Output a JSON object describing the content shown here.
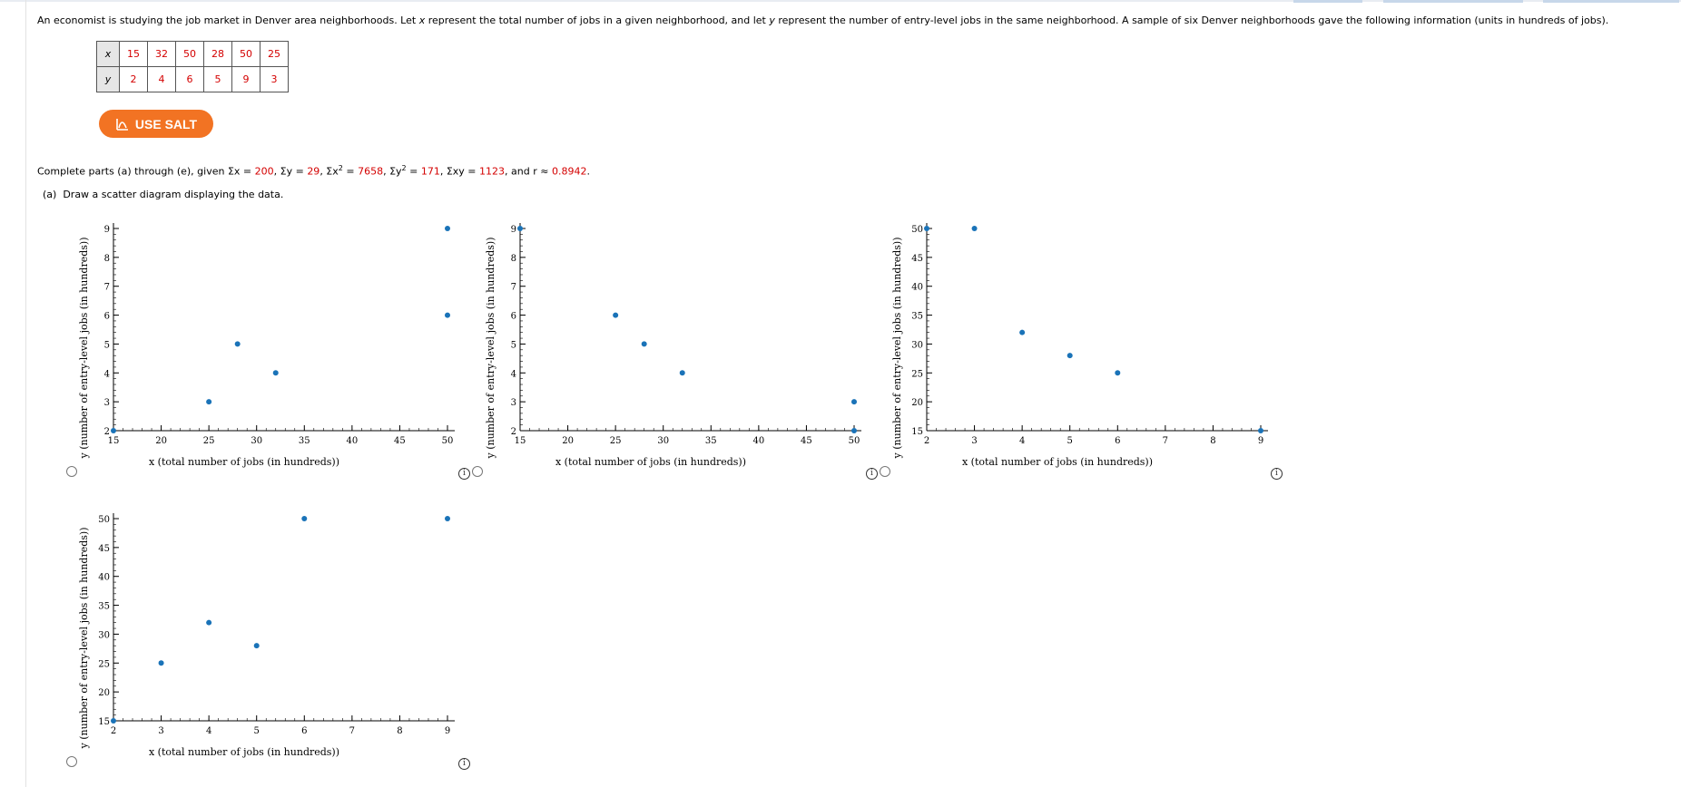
{
  "question": {
    "intro_before_x": "An economist is studying the job market in Denver area neighborhoods. Let ",
    "x_var": "x",
    "intro_mid": " represent the total number of jobs in a given neighborhood, and let ",
    "y_var": "y",
    "intro_after": " represent the number of entry-level jobs in the same neighborhood. A sample of six Denver neighborhoods gave the following information (units in hundreds of jobs)."
  },
  "table": {
    "x_label": "x",
    "y_label": "y",
    "x_values": [
      "15",
      "32",
      "50",
      "28",
      "50",
      "25"
    ],
    "y_values": [
      "2",
      "4",
      "6",
      "5",
      "9",
      "3"
    ]
  },
  "salt_button": {
    "label": "USE SALT",
    "color": "#f27323"
  },
  "given": {
    "prefix": "Complete parts (a) through (e), given Σx = ",
    "sum_x": "200",
    "sep1": ", Σy = ",
    "sum_y": "29",
    "sep2": ", Σx",
    "sq": "2",
    "sep3": " = ",
    "sum_x2": "7658",
    "sep4": ", Σy",
    "sep5": " = ",
    "sum_y2": "171",
    "sep6": ", Σxy = ",
    "sum_xy": "1123",
    "sep7": ", and r ≈ ",
    "r": "0.8942",
    "end": "."
  },
  "part_a": {
    "label": "(a)",
    "text": "Draw a scatter diagram displaying the data."
  },
  "colors": {
    "point": "#1a73b8",
    "red_value": "#d40000"
  },
  "icons": {
    "radio": "radio-button",
    "info": "info-icon",
    "salt": "salt-chart-icon"
  },
  "chart_data": [
    {
      "type": "scatter",
      "xlabel": "x (total number of jobs (in hundreds))",
      "ylabel": "y (number of entry-level jobs (in hundreds))",
      "xlim": [
        15,
        50
      ],
      "ylim": [
        2,
        9
      ],
      "xticks": [
        15,
        20,
        25,
        30,
        35,
        40,
        45,
        50
      ],
      "yticks": [
        2,
        3,
        4,
        5,
        6,
        7,
        8,
        9
      ],
      "points": [
        [
          15,
          2
        ],
        [
          25,
          3
        ],
        [
          28,
          5
        ],
        [
          32,
          4
        ],
        [
          50,
          6
        ],
        [
          50,
          9
        ]
      ]
    },
    {
      "type": "scatter",
      "xlabel": "x (total number of jobs (in hundreds))",
      "ylabel": "y (number of entry-level jobs (in hundreds))",
      "xlim": [
        15,
        50
      ],
      "ylim": [
        2,
        9
      ],
      "xticks": [
        15,
        20,
        25,
        30,
        35,
        40,
        45,
        50
      ],
      "yticks": [
        2,
        3,
        4,
        5,
        6,
        7,
        8,
        9
      ],
      "points": [
        [
          15,
          9
        ],
        [
          25,
          6
        ],
        [
          28,
          5
        ],
        [
          32,
          4
        ],
        [
          50,
          3
        ],
        [
          50,
          2
        ]
      ]
    },
    {
      "type": "scatter",
      "xlabel": "x (total number of jobs (in hundreds))",
      "ylabel": "y (number of entry-level jobs (in hundreds))",
      "xlim": [
        2,
        9
      ],
      "ylim": [
        15,
        50
      ],
      "xticks": [
        2,
        3,
        4,
        5,
        6,
        7,
        8,
        9
      ],
      "yticks": [
        15,
        20,
        25,
        30,
        35,
        40,
        45,
        50
      ],
      "points": [
        [
          2,
          50
        ],
        [
          3,
          50
        ],
        [
          4,
          32
        ],
        [
          5,
          28
        ],
        [
          6,
          25
        ],
        [
          9,
          15
        ]
      ]
    },
    {
      "type": "scatter",
      "xlabel": "x (total number of jobs (in hundreds))",
      "ylabel": "y (number of entry-level jobs (in hundreds))",
      "xlim": [
        2,
        9
      ],
      "ylim": [
        15,
        50
      ],
      "xticks": [
        2,
        3,
        4,
        5,
        6,
        7,
        8,
        9
      ],
      "yticks": [
        15,
        20,
        25,
        30,
        35,
        40,
        45,
        50
      ],
      "points": [
        [
          2,
          15
        ],
        [
          3,
          25
        ],
        [
          4,
          32
        ],
        [
          5,
          28
        ],
        [
          6,
          50
        ],
        [
          9,
          50
        ]
      ]
    }
  ]
}
